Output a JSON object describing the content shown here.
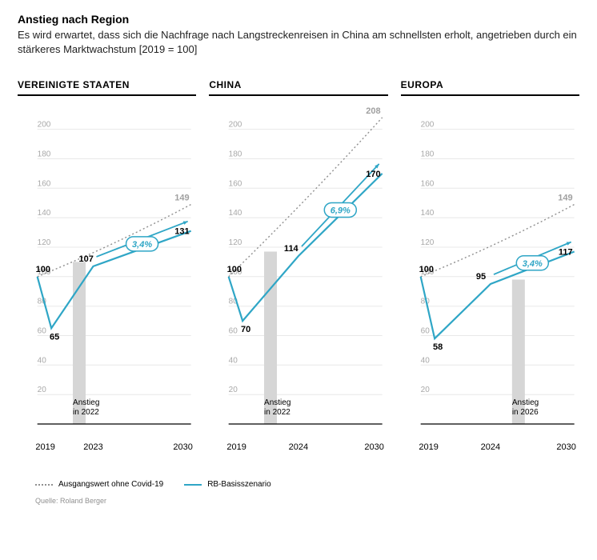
{
  "header": {
    "title": "Anstieg nach Region",
    "subtitle": "Es wird erwartet, dass sich die Nachfrage nach Langstreckenreisen in China am schnellsten erholt, angetrieben durch ein stärkeres Marktwachstum [2019 = 100]"
  },
  "axis": {
    "ylim": [
      0,
      215
    ],
    "yticks": [
      20,
      40,
      60,
      80,
      100,
      120,
      140,
      160,
      180,
      200
    ],
    "tick20": "20",
    "tick40": "40",
    "tick60": "60",
    "tick80": "80",
    "tick100": "100",
    "tick120": "120",
    "tick140": "140",
    "tick160": "160",
    "tick180": "180",
    "tick200": "200",
    "label_fontsize": 10,
    "grid_color": "#e8e8e8",
    "background_color": "#ffffff"
  },
  "colors": {
    "scenario": "#2fa6c6",
    "baseline": "#909090",
    "recovery_bar": "#d6d6d6",
    "axis": "#000000",
    "grid": "#e8e8e8",
    "text": "#000000",
    "muted_text": "#a0a0a0"
  },
  "panels": [
    {
      "key": "us",
      "title": "VEREINIGTE STAATEN",
      "type": "line",
      "x_axis": {
        "start": "2019",
        "mid": "2023",
        "end": "2030",
        "mid_year": 2023
      },
      "baseline": {
        "years": [
          2019,
          2030
        ],
        "values": [
          100,
          149
        ],
        "end_label": "149"
      },
      "scenario": {
        "years": [
          2019,
          2020,
          2023,
          2030
        ],
        "values": [
          100,
          65,
          107,
          131
        ],
        "labels": {
          "start": "100",
          "dip": "65",
          "mid": "107",
          "end": "131"
        }
      },
      "growth_pct": "3,4%",
      "recovery": {
        "year": 2022,
        "label_l1": "Anstieg",
        "label_l2": "in 2022"
      }
    },
    {
      "key": "cn",
      "title": "CHINA",
      "type": "line",
      "x_axis": {
        "start": "2019",
        "mid": "2024",
        "end": "2030",
        "mid_year": 2024
      },
      "baseline": {
        "years": [
          2019,
          2030
        ],
        "values": [
          100,
          208
        ],
        "end_label": "208"
      },
      "scenario": {
        "years": [
          2019,
          2020,
          2024,
          2030
        ],
        "values": [
          100,
          70,
          114,
          170
        ],
        "labels": {
          "start": "100",
          "dip": "70",
          "mid": "114",
          "end": "170"
        }
      },
      "growth_pct": "6,9%",
      "recovery": {
        "year": 2022,
        "label_l1": "Anstieg",
        "label_l2": "in 2022"
      }
    },
    {
      "key": "eu",
      "title": "EUROPA",
      "type": "line",
      "x_axis": {
        "start": "2019",
        "mid": "2024",
        "end": "2030",
        "mid_year": 2024
      },
      "baseline": {
        "years": [
          2019,
          2030
        ],
        "values": [
          100,
          149
        ],
        "end_label": "149"
      },
      "scenario": {
        "years": [
          2019,
          2020,
          2024,
          2030
        ],
        "values": [
          100,
          58,
          95,
          117
        ],
        "labels": {
          "start": "100",
          "dip": "58",
          "mid": "95",
          "end": "117"
        }
      },
      "growth_pct": "3,4%",
      "recovery": {
        "year": 2026,
        "label_l1": "Anstieg",
        "label_l2": "in 2026"
      }
    }
  ],
  "legend": {
    "baseline_label": "Ausgangswert ohne Covid-19",
    "scenario_label": "RB-Basisszenario"
  },
  "source": "Quelle: Roland Berger"
}
